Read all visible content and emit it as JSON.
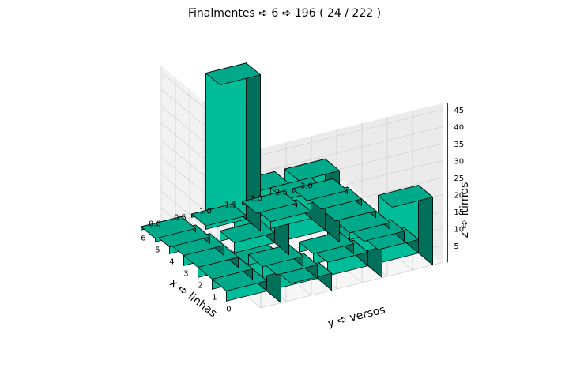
{
  "chart_data": {
    "type": "bar3d",
    "title": "Finalmentes ➪ 6 ➪ 196 ( 24 / 222 )",
    "xlabel": "x ➪ linhas",
    "ylabel": "y ➪ versos",
    "zlabel": "z ➪ ítimos",
    "x_ticks": [
      "0",
      "1",
      "2",
      "3",
      "4",
      "5",
      "6"
    ],
    "y_ticks": [
      "0.0",
      "0.5",
      "1.0",
      "1.5",
      "2.0",
      "2.5",
      "3.0"
    ],
    "z_ticks": [
      "5",
      "10",
      "15",
      "20",
      "25",
      "30",
      "35",
      "40",
      "45"
    ],
    "xlim": [
      0,
      7
    ],
    "ylim": [
      0,
      3
    ],
    "zlim": [
      0,
      47
    ],
    "grid": true,
    "bar_color": "#00a98a",
    "edge_color": "#000000",
    "bars": [
      {
        "x": 0,
        "y": 0,
        "z": 14
      },
      {
        "x": 0,
        "y": 1,
        "z": 5
      },
      {
        "x": 0,
        "y": 2,
        "z": 14
      },
      {
        "x": 0,
        "y": 3,
        "z": 20
      },
      {
        "x": 1,
        "y": 0,
        "z": 3
      },
      {
        "x": 1,
        "y": 1,
        "z": 4
      },
      {
        "x": 1,
        "y": 2,
        "z": 4
      },
      {
        "x": 1,
        "y": 3,
        "z": 4
      },
      {
        "x": 2,
        "y": 0,
        "z": 3
      },
      {
        "x": 2,
        "y": 1,
        "z": 3
      },
      {
        "x": 2,
        "y": 2,
        "z": 3
      },
      {
        "x": 2,
        "y": 3,
        "z": 3
      },
      {
        "x": 3,
        "y": 0,
        "z": 3
      },
      {
        "x": 3,
        "y": 1,
        "z": 21
      },
      {
        "x": 3,
        "y": 2,
        "z": 21
      },
      {
        "x": 3,
        "y": 3,
        "z": 2
      },
      {
        "x": 4,
        "y": 0,
        "z": 3
      },
      {
        "x": 4,
        "y": 1,
        "z": 3
      },
      {
        "x": 4,
        "y": 2,
        "z": 12
      },
      {
        "x": 4,
        "y": 3,
        "z": 2
      },
      {
        "x": 5,
        "y": 0,
        "z": 2
      },
      {
        "x": 5,
        "y": 1,
        "z": 46
      },
      {
        "x": 5,
        "y": 2,
        "z": 2
      },
      {
        "x": 5,
        "y": 3,
        "z": 2
      },
      {
        "x": 6,
        "y": 0,
        "z": 1
      },
      {
        "x": 6,
        "y": 1,
        "z": 1
      },
      {
        "x": 6,
        "y": 2,
        "z": 1
      },
      {
        "x": 6,
        "y": 3,
        "z": 1
      }
    ]
  }
}
